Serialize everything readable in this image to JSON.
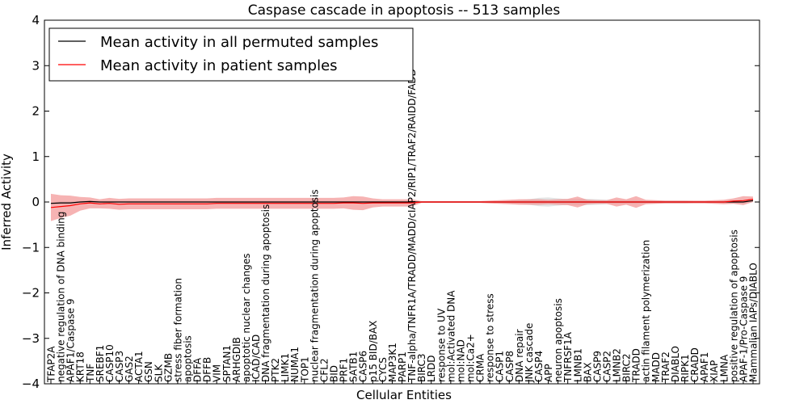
{
  "chart_data": {
    "type": "line",
    "title": "Caspase cascade in apoptosis -- 513 samples",
    "xlabel": "Cellular Entities",
    "ylabel": "Inferred Activity",
    "ylim": [
      -4,
      4
    ],
    "yticks": [
      -4,
      -3,
      -2,
      -1,
      0,
      1,
      2,
      3,
      4
    ],
    "ytick_labels": [
      "−4",
      "−3",
      "−2",
      "−1",
      "0",
      "1",
      "2",
      "3",
      "4"
    ],
    "legend_position": "top-left",
    "categories": [
      "TFAP2A",
      "negative regulation of DNA binding",
      "APAF1/Caspase 9",
      "KRT18",
      "TNF",
      "SREBF1",
      "CASP10",
      "CASP3",
      "GAS2",
      "ACTA1",
      "GSN",
      "SLK",
      "GZMB",
      "stress fiber formation",
      "apoptosis",
      "DFFA",
      "DFFB",
      "VIM",
      "SPTAN1",
      "ARHGDIB",
      "apoptotic nuclear changes",
      "ICAD/CAD",
      "DNA fragmentation during apoptosis",
      "PTK2",
      "LIMK1",
      "NUMA1",
      "TOP1",
      "nuclear fragmentation during apoptosis",
      "CFL2",
      "BID",
      "PRF1",
      "SATB1",
      "CASP6",
      "p15 BID/BAX",
      "CYCS",
      "MAP3K1",
      "PARP1",
      "TNF-alpha/TNFR1A/TRADD/MADD/cIAP2/RIP1/TRAF2/RAIDD/FADD",
      "BIRC3",
      "LRDD",
      "response to UV",
      "mol:Activated DNA",
      "mol:NAD",
      "mol:Ca2+",
      "CRMA",
      "response to stress",
      "CASP1",
      "CASP8",
      "DNA repair",
      "JNK cascade",
      "CASP4",
      "APP",
      "neuron apoptosis",
      "TNFRSF1A",
      "LMNB1",
      "BAX",
      "CASP9",
      "CASP2",
      "LMNB2",
      "BIRC2",
      "TRADD",
      "actin filament polymerization",
      "MADD",
      "TRAF2",
      "DIABLO",
      "RIPK1",
      "CRADD",
      "APAF1",
      "XIAP",
      "LMNA",
      "positive regulation of apoptosis",
      "APAF-1/Pro-Caspase 9",
      "Mammalian IAPs/DIABLO"
    ],
    "series": [
      {
        "name": "Mean activity in all permuted samples",
        "color": "#000000",
        "band_color": "#c8c8c8",
        "values": [
          -0.03,
          -0.02,
          -0.02,
          0.0,
          0.01,
          0.0,
          0.0,
          0.0,
          0.0,
          0.0,
          0.0,
          0.0,
          0.0,
          0.0,
          0.0,
          0.0,
          0.0,
          0.0,
          0.0,
          0.0,
          0.0,
          0.0,
          0.0,
          0.0,
          0.0,
          0.0,
          0.0,
          0.0,
          0.0,
          0.0,
          0.0,
          0.0,
          0.0,
          0.0,
          0.0,
          0.0,
          0.0,
          0.0,
          0.0,
          0.0,
          0.0,
          0.0,
          0.0,
          0.0,
          0.0,
          0.0,
          0.0,
          0.0,
          0.0,
          0.0,
          0.0,
          0.0,
          0.0,
          0.0,
          0.0,
          0.0,
          0.0,
          0.0,
          0.0,
          0.0,
          0.0,
          0.0,
          0.0,
          0.0,
          0.0,
          0.0,
          0.0,
          0.0,
          0.0,
          0.0,
          0.0,
          0.0,
          0.03
        ],
        "band_half_width": [
          0.03,
          0.03,
          0.03,
          0.02,
          0.02,
          0.02,
          0.02,
          0.02,
          0.02,
          0.02,
          0.02,
          0.02,
          0.02,
          0.02,
          0.02,
          0.02,
          0.02,
          0.02,
          0.02,
          0.02,
          0.02,
          0.02,
          0.02,
          0.02,
          0.02,
          0.02,
          0.02,
          0.02,
          0.02,
          0.02,
          0.02,
          0.02,
          0.02,
          0.02,
          0.02,
          0.02,
          0.02,
          0.02,
          0.01,
          0.01,
          0.01,
          0.01,
          0.01,
          0.01,
          0.01,
          0.01,
          0.02,
          0.03,
          0.04,
          0.06,
          0.09,
          0.1,
          0.08,
          0.06,
          0.06,
          0.07,
          0.06,
          0.05,
          0.04,
          0.04,
          0.04,
          0.03,
          0.03,
          0.03,
          0.03,
          0.03,
          0.02,
          0.02,
          0.02,
          0.03,
          0.03,
          0.03,
          0.03
        ]
      },
      {
        "name": "Mean activity in patient samples",
        "color": "#ff0000",
        "band_color": "#f08080",
        "values": [
          -0.12,
          -0.1,
          -0.08,
          -0.04,
          -0.02,
          -0.04,
          -0.03,
          -0.05,
          -0.04,
          -0.04,
          -0.04,
          -0.04,
          -0.04,
          -0.04,
          -0.04,
          -0.04,
          -0.04,
          -0.03,
          -0.03,
          -0.03,
          -0.03,
          -0.03,
          -0.03,
          -0.03,
          -0.03,
          -0.03,
          -0.03,
          -0.03,
          -0.03,
          -0.03,
          -0.02,
          -0.02,
          -0.03,
          -0.02,
          -0.02,
          -0.02,
          -0.02,
          -0.02,
          0.0,
          0.0,
          0.0,
          0.0,
          0.0,
          0.0,
          0.0,
          0.0,
          0.0,
          0.0,
          0.0,
          0.0,
          0.0,
          0.0,
          0.0,
          0.0,
          0.0,
          0.0,
          0.0,
          0.0,
          0.0,
          0.0,
          0.0,
          0.0,
          0.0,
          0.0,
          0.0,
          0.0,
          0.0,
          0.0,
          0.0,
          0.0,
          0.02,
          0.03,
          0.06
        ],
        "band_half_width": [
          0.3,
          0.25,
          0.22,
          0.15,
          0.12,
          0.1,
          0.12,
          0.12,
          0.12,
          0.12,
          0.12,
          0.12,
          0.12,
          0.12,
          0.12,
          0.12,
          0.12,
          0.12,
          0.12,
          0.12,
          0.12,
          0.12,
          0.12,
          0.12,
          0.12,
          0.12,
          0.12,
          0.12,
          0.12,
          0.12,
          0.12,
          0.15,
          0.15,
          0.1,
          0.08,
          0.08,
          0.08,
          0.08,
          0.02,
          0.02,
          0.02,
          0.02,
          0.02,
          0.02,
          0.02,
          0.03,
          0.04,
          0.05,
          0.06,
          0.06,
          0.06,
          0.05,
          0.06,
          0.07,
          0.12,
          0.05,
          0.04,
          0.04,
          0.1,
          0.06,
          0.13,
          0.05,
          0.04,
          0.03,
          0.03,
          0.03,
          0.03,
          0.03,
          0.04,
          0.05,
          0.06,
          0.1,
          0.06
        ]
      }
    ]
  }
}
